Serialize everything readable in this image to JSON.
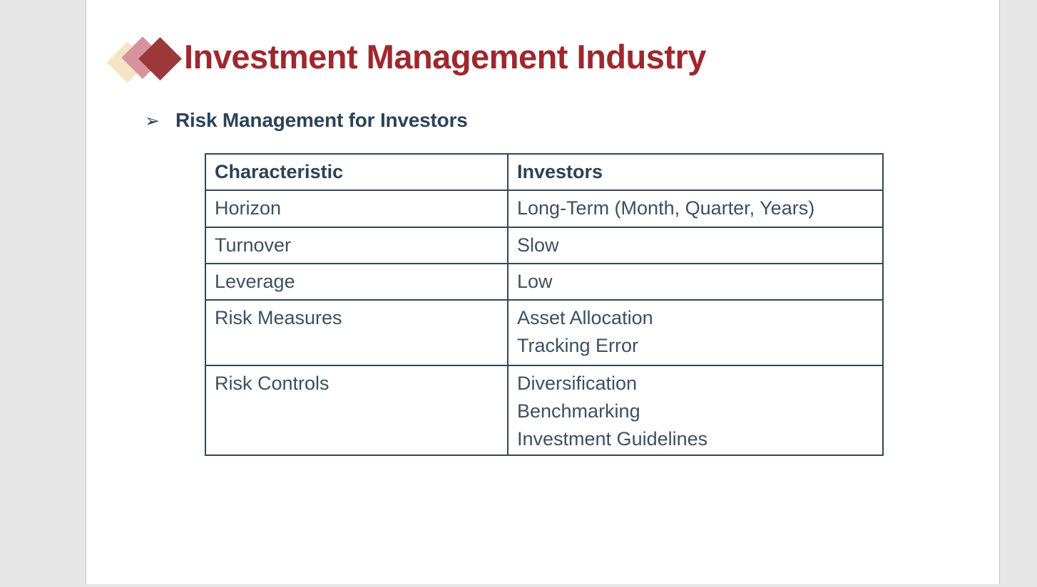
{
  "slide": {
    "title": "Investment Management Industry",
    "bullet_char": "➢",
    "heading": "Risk Management for Investors"
  },
  "table": {
    "headers": [
      "Characteristic",
      "Investors"
    ],
    "rows": [
      {
        "characteristic": "Horizon",
        "investors": "Long-Term (Month, Quarter, Years)"
      },
      {
        "characteristic": "Turnover",
        "investors": "Slow"
      },
      {
        "characteristic": "Leverage",
        "investors": "Low"
      },
      {
        "characteristic": "Risk Measures",
        "investors": "Asset Allocation\nTracking Error"
      },
      {
        "characteristic": "Risk Controls",
        "investors": "Diversification\nBenchmarking\nInvestment Guidelines"
      }
    ]
  },
  "icons": {
    "logo": "triple-diamond-logo"
  },
  "colors": {
    "title-red": "#9e282d",
    "diamond-dark": "#9b383a",
    "diamond-rose": "#d6939b",
    "diamond-cream": "#f5e5c5",
    "heading-navy": "#2c4257",
    "table-text": "#3b5064",
    "table-border": "#33475a",
    "canvas-gray": "#e6e6e6",
    "edge-line": "#c4c4c4",
    "slide-white": "#ffffff"
  }
}
